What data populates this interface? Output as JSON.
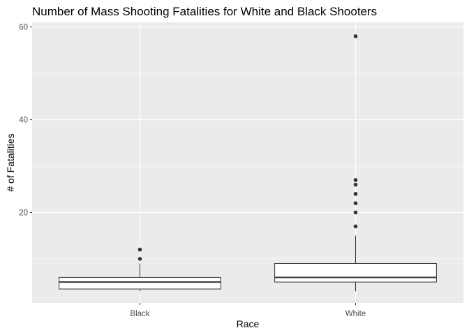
{
  "chart_data": {
    "type": "boxplot",
    "title": "Number of Mass Shooting Fatalities for White and Black Shooters",
    "xlabel": "Race",
    "ylabel": "# of Fatalities",
    "ylim": [
      0.5,
      61
    ],
    "y_ticks": [
      20,
      40,
      60
    ],
    "y_minor_ticks": [
      10,
      30,
      50
    ],
    "grid": true,
    "categories": [
      "Black",
      "White"
    ],
    "boxes": [
      {
        "category": "Black",
        "whisker_low": 3,
        "q1": 3.5,
        "median": 5,
        "q3": 6,
        "whisker_high": 9,
        "outliers": [
          10,
          12
        ]
      },
      {
        "category": "White",
        "whisker_low": 3,
        "q1": 5,
        "median": 6,
        "q3": 9,
        "whisker_high": 15,
        "outliers": [
          17,
          20,
          22,
          24,
          26,
          27,
          58
        ]
      }
    ]
  }
}
